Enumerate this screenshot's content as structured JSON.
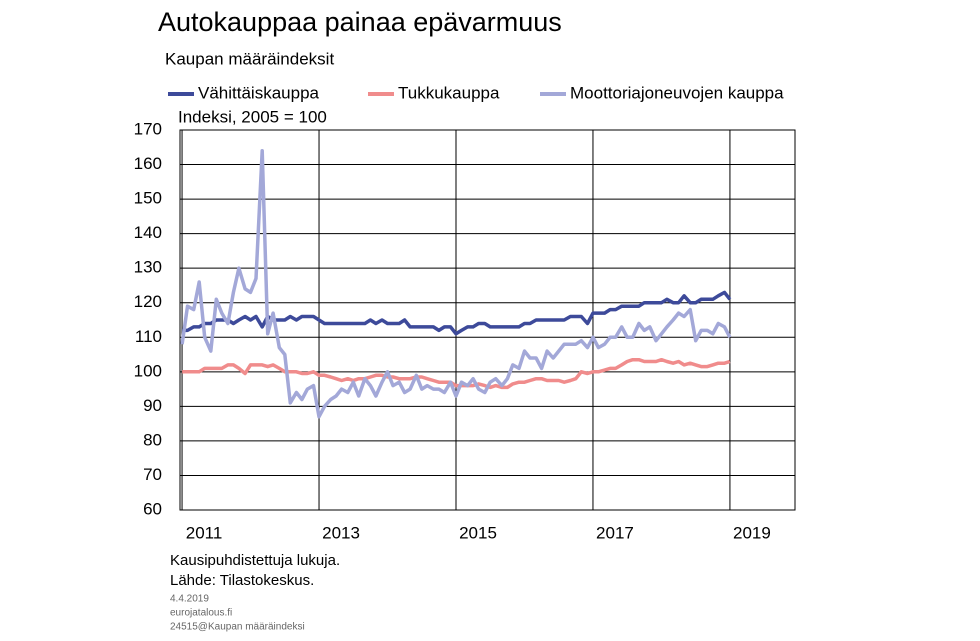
{
  "chart_data": {
    "type": "line",
    "title": "Autokauppaa painaa epävarmuus",
    "subtitle": "Kaupan määräindeksit",
    "y_label": "Indeksi, 2005 = 100",
    "notes": [
      "Kausipuhdistettuja lukuja.",
      "Lähde: Tilastokeskus."
    ],
    "footer": [
      "4.4.2019",
      "eurojatalous.fi",
      "24515@Kaupan määräindeksi"
    ],
    "x": [
      2011,
      2011.08,
      2011.17,
      2011.25,
      2011.33,
      2011.42,
      2011.5,
      2011.58,
      2011.67,
      2011.75,
      2011.83,
      2011.92,
      2012,
      2012.08,
      2012.17,
      2012.25,
      2012.33,
      2012.42,
      2012.5,
      2012.58,
      2012.67,
      2012.75,
      2012.83,
      2012.92,
      2013,
      2013.08,
      2013.17,
      2013.25,
      2013.33,
      2013.42,
      2013.5,
      2013.58,
      2013.67,
      2013.75,
      2013.83,
      2013.92,
      2014,
      2014.08,
      2014.17,
      2014.25,
      2014.33,
      2014.42,
      2014.5,
      2014.58,
      2014.67,
      2014.75,
      2014.83,
      2014.92,
      2015,
      2015.08,
      2015.17,
      2015.25,
      2015.33,
      2015.42,
      2015.5,
      2015.58,
      2015.67,
      2015.75,
      2015.83,
      2015.92,
      2016,
      2016.08,
      2016.17,
      2016.25,
      2016.33,
      2016.42,
      2016.5,
      2016.58,
      2016.67,
      2016.75,
      2016.83,
      2016.92,
      2017,
      2017.08,
      2017.17,
      2017.25,
      2017.33,
      2017.42,
      2017.5,
      2017.58,
      2017.67,
      2017.75,
      2017.83,
      2017.92,
      2018,
      2018.08,
      2018.17,
      2018.25,
      2018.33,
      2018.42,
      2018.5,
      2018.58,
      2018.67,
      2018.75,
      2018.83,
      2018.92,
      2019
    ],
    "series": [
      {
        "name": "Vähittäiskauppa",
        "color": "#3d4a9a",
        "values": [
          112,
          112,
          113,
          113,
          114,
          114,
          115,
          115,
          115,
          114,
          115,
          116,
          115,
          116,
          113,
          116,
          115,
          115,
          115,
          116,
          115,
          116,
          116,
          116,
          115,
          114,
          114,
          114,
          114,
          114,
          114,
          114,
          114,
          115,
          114,
          115,
          114,
          114,
          114,
          115,
          113,
          113,
          113,
          113,
          113,
          112,
          113,
          113,
          111,
          112,
          113,
          113,
          114,
          114,
          113,
          113,
          113,
          113,
          113,
          113,
          114,
          114,
          115,
          115,
          115,
          115,
          115,
          115,
          116,
          116,
          116,
          114,
          117,
          117,
          117,
          118,
          118,
          119,
          119,
          119,
          119,
          120,
          120,
          120,
          120,
          121,
          120,
          120,
          122,
          120,
          120,
          121,
          121,
          121,
          122,
          123,
          121
        ]
      },
      {
        "name": "Tukkukauppa",
        "color": "#f08c8c",
        "values": [
          100,
          100,
          100,
          100,
          101,
          101,
          101,
          101,
          102,
          102,
          101,
          99.5,
          102,
          102,
          102,
          101.5,
          102,
          101,
          100,
          100,
          100,
          99.5,
          99.5,
          100,
          99,
          99,
          98.5,
          98,
          97.5,
          98,
          97.5,
          98,
          98,
          98.5,
          99,
          99,
          98.5,
          98.5,
          98,
          98,
          98,
          98.5,
          98.5,
          98,
          97.5,
          97,
          97,
          97,
          96,
          96,
          96,
          96,
          96.5,
          96,
          95.5,
          96,
          95.5,
          95.5,
          96.5,
          97,
          97,
          97.5,
          98,
          98,
          97.5,
          97.5,
          97.5,
          97,
          97.5,
          98,
          100,
          99.5,
          100,
          100,
          100.5,
          101,
          101,
          102,
          103,
          103.5,
          103.5,
          103,
          103,
          103,
          103.5,
          103,
          102.5,
          103,
          102,
          102.5,
          102,
          101.5,
          101.5,
          102,
          102.5,
          102.5,
          103
        ]
      },
      {
        "name": "Moottoriajoneuvojen kauppa",
        "color": "#a3a8d8",
        "values": [
          108,
          119,
          118,
          126,
          110,
          106,
          121,
          117,
          114,
          123,
          130,
          124,
          123,
          127,
          164,
          111,
          117,
          107,
          105,
          91,
          94,
          92,
          95,
          96,
          87,
          90,
          92,
          93,
          95,
          94,
          97,
          93,
          98,
          96,
          93,
          97,
          100,
          96,
          97,
          94,
          95,
          99,
          95,
          96,
          95,
          95,
          94,
          97,
          93,
          97,
          96,
          98,
          95,
          94,
          97,
          98,
          96,
          98,
          102,
          101,
          106,
          104,
          104,
          101,
          106,
          104,
          106,
          108,
          108,
          108,
          109,
          107,
          110,
          107,
          108,
          110,
          110,
          113,
          110,
          110,
          114,
          112,
          113,
          109,
          111,
          113,
          115,
          117,
          116,
          118,
          109,
          112,
          112,
          111,
          114,
          113,
          110
        ]
      }
    ],
    "xlim": [
      2010.97,
      2019.95
    ],
    "xticks": [
      2011,
      2013,
      2015,
      2017,
      2019
    ],
    "ylim": [
      60,
      170
    ],
    "yticks": [
      60,
      70,
      80,
      90,
      100,
      110,
      120,
      130,
      140,
      150,
      160,
      170
    ],
    "grid": true,
    "legend": "top"
  }
}
